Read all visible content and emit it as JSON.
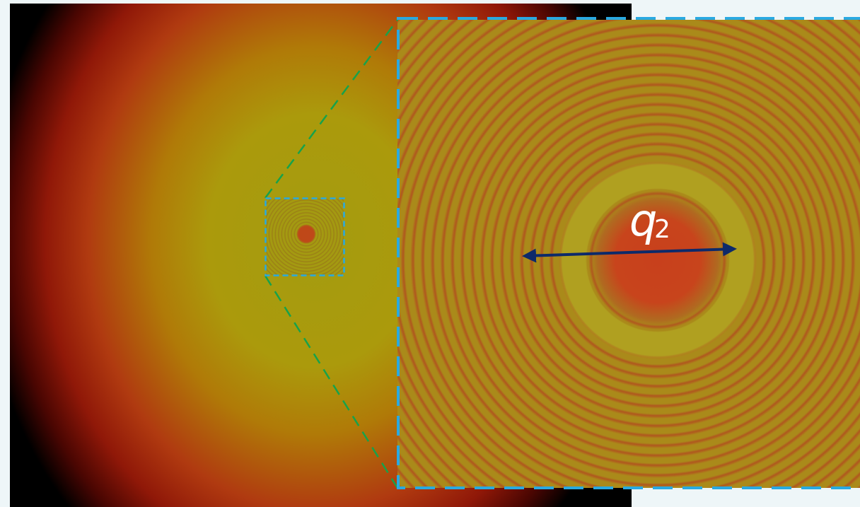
{
  "annotation": {
    "symbol": "q",
    "subscript": "2"
  }
}
